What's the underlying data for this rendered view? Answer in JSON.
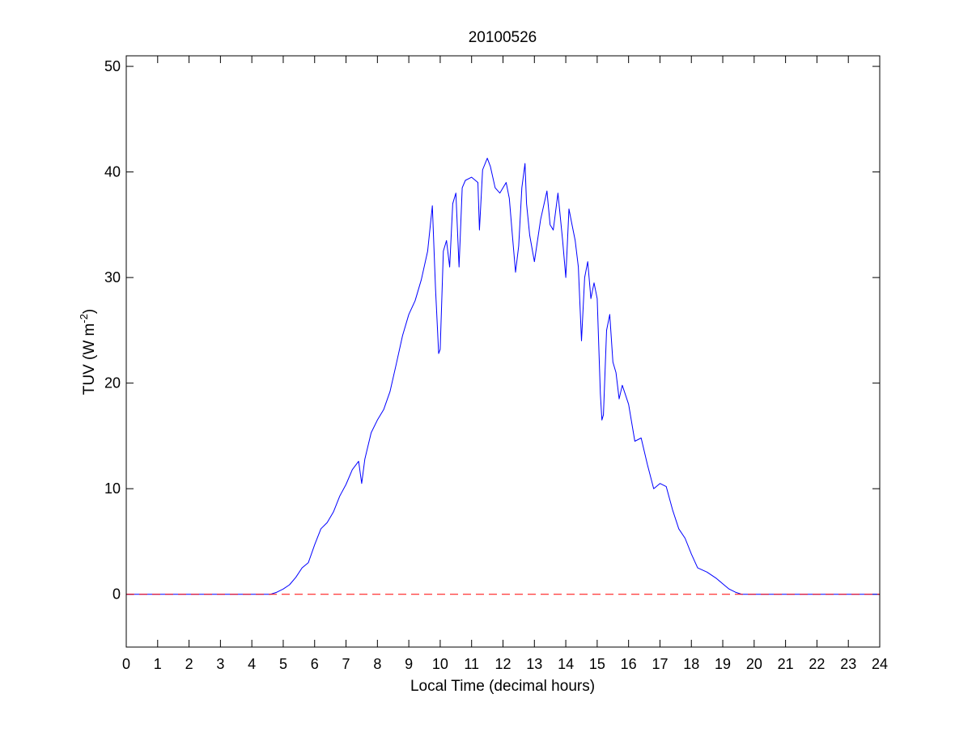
{
  "chart_data": {
    "type": "line",
    "title": "20100526",
    "xlabel": "Local Time (decimal hours)",
    "ylabel_main": "TUV (W m",
    "ylabel_sup": "-2",
    "ylabel_close": ")",
    "xlim": [
      0,
      24
    ],
    "ylim": [
      -5,
      51
    ],
    "xticks": [
      0,
      1,
      2,
      3,
      4,
      5,
      6,
      7,
      8,
      9,
      10,
      11,
      12,
      13,
      14,
      15,
      16,
      17,
      18,
      19,
      20,
      21,
      22,
      23,
      24
    ],
    "yticks": [
      0,
      10,
      20,
      30,
      40,
      50
    ],
    "grid": false,
    "colors": {
      "series": "#0000ff",
      "reference": "#ff0000",
      "axes": "#000000"
    },
    "series": [
      {
        "style": "solid",
        "color": "#0000ff",
        "x": [
          0,
          4.6,
          4.8,
          5.0,
          5.2,
          5.4,
          5.6,
          5.8,
          6.0,
          6.2,
          6.4,
          6.6,
          6.8,
          7.0,
          7.2,
          7.4,
          7.5,
          7.6,
          7.8,
          8.0,
          8.2,
          8.4,
          8.6,
          8.8,
          9.0,
          9.2,
          9.4,
          9.6,
          9.75,
          9.85,
          9.95,
          10.0,
          10.1,
          10.2,
          10.3,
          10.4,
          10.5,
          10.6,
          10.7,
          10.8,
          11.0,
          11.2,
          11.25,
          11.35,
          11.5,
          11.6,
          11.75,
          11.9,
          12.1,
          12.2,
          12.3,
          12.4,
          12.5,
          12.6,
          12.7,
          12.75,
          12.85,
          13.0,
          13.2,
          13.4,
          13.5,
          13.6,
          13.75,
          13.9,
          14.0,
          14.1,
          14.2,
          14.3,
          14.4,
          14.5,
          14.6,
          14.7,
          14.8,
          14.9,
          15.0,
          15.1,
          15.15,
          15.2,
          15.3,
          15.4,
          15.5,
          15.6,
          15.7,
          15.8,
          16.0,
          16.2,
          16.4,
          16.6,
          16.8,
          17.0,
          17.2,
          17.4,
          17.6,
          17.8,
          18.0,
          18.2,
          18.5,
          18.8,
          19.0,
          19.2,
          19.4,
          19.6,
          20.0,
          24.0
        ],
        "y": [
          0,
          0,
          0.2,
          0.5,
          0.9,
          1.6,
          2.5,
          3.0,
          4.7,
          6.2,
          6.8,
          7.8,
          9.3,
          10.4,
          11.8,
          12.6,
          10.5,
          12.8,
          15.3,
          16.5,
          17.5,
          19.2,
          21.8,
          24.5,
          26.5,
          27.8,
          29.8,
          32.5,
          36.8,
          29.0,
          22.8,
          23.2,
          32.5,
          33.5,
          31.0,
          37.0,
          38.0,
          31.0,
          38.5,
          39.2,
          39.5,
          39.0,
          34.5,
          40.2,
          41.3,
          40.5,
          38.5,
          38.0,
          39.0,
          37.5,
          34.0,
          30.5,
          33.0,
          38.5,
          40.8,
          37.0,
          34.0,
          31.5,
          35.5,
          38.2,
          35.0,
          34.5,
          38.0,
          33.5,
          30.0,
          36.5,
          35.0,
          33.5,
          31.0,
          24.0,
          30.0,
          31.5,
          28.0,
          29.5,
          28.0,
          19.0,
          16.5,
          17.0,
          25.0,
          26.5,
          22.0,
          21.0,
          18.5,
          19.8,
          18.0,
          14.5,
          14.8,
          12.3,
          10.0,
          10.5,
          10.2,
          8.0,
          6.2,
          5.3,
          3.8,
          2.5,
          2.1,
          1.5,
          1.0,
          0.5,
          0.2,
          0,
          0,
          0
        ]
      },
      {
        "style": "dashed",
        "color": "#ff0000",
        "x": [
          0,
          24
        ],
        "y": [
          0,
          0
        ]
      }
    ]
  }
}
